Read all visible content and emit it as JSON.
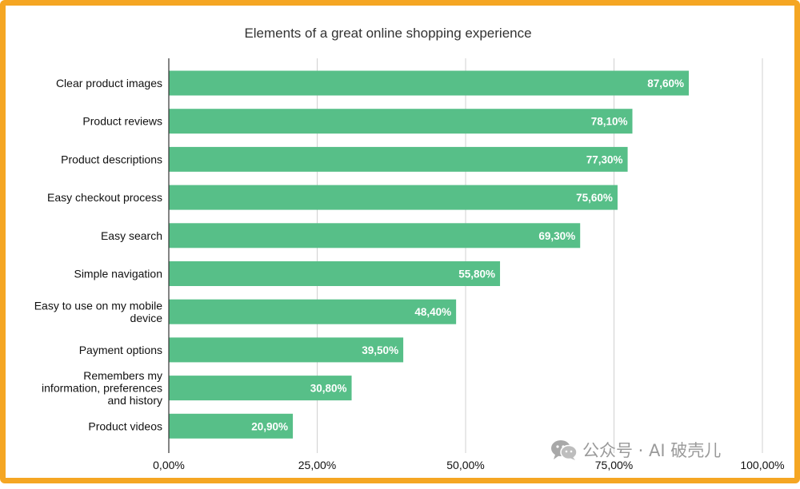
{
  "colors": {
    "bar": "#57bf88",
    "frame": "#f5a623"
  },
  "watermark": {
    "icon": "wechat-icon",
    "text": "公众号 · AI 破壳儿"
  },
  "chart_data": {
    "type": "bar",
    "orientation": "horizontal",
    "title": "Elements of a great online shopping experience",
    "xlabel": "",
    "ylabel": "",
    "xlim": [
      0,
      100
    ],
    "grid": true,
    "ticks": [
      "0,00%",
      "25,00%",
      "50,00%",
      "75,00%",
      "100,00%"
    ],
    "categories": [
      "Clear product images",
      "Product reviews",
      "Product descriptions",
      "Easy checkout process",
      "Easy search",
      "Simple navigation",
      "Easy to use on my mobile device",
      "Payment options",
      "Remembers my information, preferences and history",
      "Product videos"
    ],
    "category_lines": [
      [
        "Clear product images"
      ],
      [
        "Product reviews"
      ],
      [
        "Product descriptions"
      ],
      [
        "Easy checkout process"
      ],
      [
        "Easy search"
      ],
      [
        "Simple navigation"
      ],
      [
        "Easy to use on my mobile",
        "device"
      ],
      [
        "Payment options"
      ],
      [
        "Remembers my",
        "information, preferences",
        "and history"
      ],
      [
        "Product videos"
      ]
    ],
    "values": [
      87.6,
      78.1,
      77.3,
      75.6,
      69.3,
      55.8,
      48.4,
      39.5,
      30.8,
      20.9
    ],
    "value_labels": [
      "87,60%",
      "78,10%",
      "77,30%",
      "75,60%",
      "69,30%",
      "55,80%",
      "48,40%",
      "39,50%",
      "30,80%",
      "20,90%"
    ]
  }
}
